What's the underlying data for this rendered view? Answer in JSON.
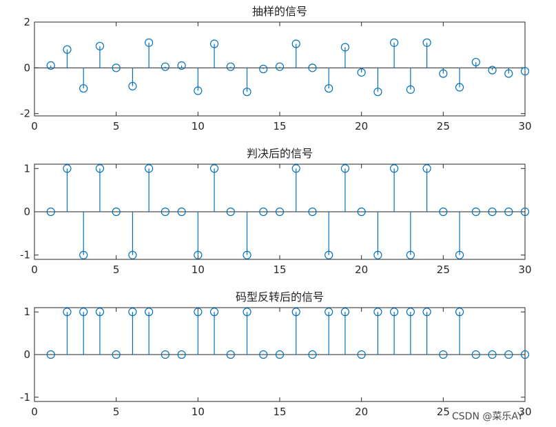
{
  "watermark": "CSDN @菜乐AY",
  "colors": {
    "stem": "#0072BD",
    "axes": "#262626",
    "background": "#ffffff"
  },
  "chart_data": [
    {
      "type": "stem",
      "title": "抽样的信号",
      "xlabel": "",
      "ylabel": "",
      "xlim": [
        0,
        30
      ],
      "ylim": [
        -2.1,
        2
      ],
      "xticks": [
        0,
        5,
        10,
        15,
        20,
        25,
        30
      ],
      "yticks": [
        -2,
        0,
        2
      ],
      "grid": false,
      "x": [
        1,
        2,
        3,
        4,
        5,
        6,
        7,
        8,
        9,
        10,
        11,
        12,
        13,
        14,
        15,
        16,
        17,
        18,
        19,
        20,
        21,
        22,
        23,
        24,
        25,
        26,
        27,
        28,
        29,
        30
      ],
      "values": [
        0.1,
        0.8,
        -0.9,
        0.95,
        0,
        -0.8,
        1.1,
        0.05,
        0.1,
        -1.0,
        1.05,
        0.05,
        -1.05,
        -0.05,
        0.05,
        1.05,
        0,
        -0.9,
        0.9,
        -0.2,
        -1.05,
        1.1,
        -0.95,
        1.1,
        -0.25,
        -0.85,
        0.25,
        -0.1,
        -0.25,
        -0.15
      ]
    },
    {
      "type": "stem",
      "title": "判决后的信号",
      "xlabel": "",
      "ylabel": "",
      "xlim": [
        0,
        30
      ],
      "ylim": [
        -1.1,
        1.1
      ],
      "xticks": [
        0,
        5,
        10,
        15,
        20,
        25,
        30
      ],
      "yticks": [
        -1,
        0,
        1
      ],
      "grid": false,
      "x": [
        1,
        2,
        3,
        4,
        5,
        6,
        7,
        8,
        9,
        10,
        11,
        12,
        13,
        14,
        15,
        16,
        17,
        18,
        19,
        20,
        21,
        22,
        23,
        24,
        25,
        26,
        27,
        28,
        29,
        30
      ],
      "values": [
        0,
        1,
        -1,
        1,
        0,
        -1,
        1,
        0,
        0,
        -1,
        1,
        0,
        -1,
        0,
        0,
        1,
        0,
        -1,
        1,
        0,
        -1,
        1,
        -1,
        1,
        0,
        -1,
        0,
        0,
        0,
        0
      ]
    },
    {
      "type": "stem",
      "title": "码型反转后的信号",
      "xlabel": "",
      "ylabel": "",
      "xlim": [
        0,
        30
      ],
      "ylim": [
        -1.1,
        1.1
      ],
      "xticks": [
        0,
        5,
        10,
        15,
        20,
        25,
        30
      ],
      "yticks": [
        -1,
        0,
        1
      ],
      "grid": false,
      "x": [
        1,
        2,
        3,
        4,
        5,
        6,
        7,
        8,
        9,
        10,
        11,
        12,
        13,
        14,
        15,
        16,
        17,
        18,
        19,
        20,
        21,
        22,
        23,
        24,
        25,
        26,
        27,
        28,
        29,
        30
      ],
      "values": [
        0,
        1,
        1,
        1,
        0,
        1,
        1,
        0,
        0,
        1,
        1,
        0,
        1,
        0,
        0,
        1,
        0,
        1,
        1,
        0,
        1,
        1,
        1,
        1,
        0,
        1,
        0,
        0,
        0,
        0
      ]
    }
  ]
}
